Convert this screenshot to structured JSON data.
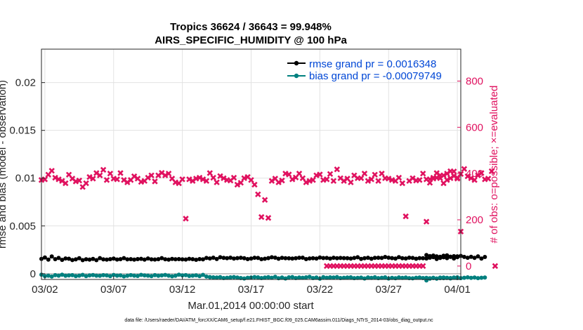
{
  "chart_data": {
    "type": "scatter",
    "title": "Tropics 36624 / 36643 = 99.948%",
    "subtitle": "AIRS_SPECIFIC_HUMIDITY @ 100 hPa",
    "xlabel": "Mar.01,2014 00:00:00 start",
    "ylabel_left": "rmse and bias (model - observation)",
    "ylabel_right": "# of obs: o=possible; ×=evaluated",
    "footer": "data file: /Users/raeder/DAI/ATM_forcXX/CAM6_setup/f.e21.FHIST_BGC.f09_025.CAM6assim.011/Diags_NTrS_2014-03/obs_diag_output.nc",
    "x_ticks": [
      "03/02",
      "03/07",
      "03/12",
      "03/17",
      "03/22",
      "03/27",
      "04/01"
    ],
    "x_tick_values": [
      1,
      6,
      11,
      16,
      21,
      26,
      31
    ],
    "xlim": [
      0.75,
      31.25
    ],
    "ylim_left": [
      -0.0006,
      0.0235
    ],
    "ylim_right": [
      -58,
      938
    ],
    "yticks_left": [
      "0",
      "0.005",
      "0.01",
      "0.015",
      "0.02"
    ],
    "ytick_values_left": [
      0,
      0.005,
      0.01,
      0.015,
      0.02
    ],
    "yticks_right": [
      "0",
      "200",
      "400",
      "600",
      "800"
    ],
    "ytick_values_right": [
      0,
      200,
      400,
      600,
      800
    ],
    "grid": true,
    "legend_position": "top-right",
    "colors": {
      "rmse": "#000000",
      "bias": "#00807f",
      "obs": "#e0115f",
      "label_right": "#e0115f",
      "legend_text": "#0047d6"
    },
    "series": [
      {
        "name": "rmse grand pr = 0.0016348",
        "axis": "left",
        "segments": [
          {
            "x_start": 0.75,
            "x_step": 0.25,
            "values": [
              0.00155,
              0.0017,
              0.00148,
              0.0018,
              0.00152,
              0.00165,
              0.00145,
              0.0016,
              0.00157,
              0.00143,
              0.0015,
              0.00162,
              0.00142,
              0.00151,
              0.00148,
              0.00155,
              0.00142,
              0.00163,
              0.0015,
              0.00147,
              0.00152,
              0.00158,
              0.00149,
              0.00152,
              0.00163,
              0.0015,
              0.00152,
              0.00147,
              0.00153,
              0.00156,
              0.00148,
              0.0016,
              0.0015,
              0.00149,
              0.00152,
              0.00163,
              0.00151,
              0.00147,
              0.00155,
              0.00151,
              0.00153,
              0.0015,
              0.00149,
              0.00156,
              0.00152,
              0.00146,
              0.00153,
              0.0015,
              0.00165,
              0.0016,
              0.00168,
              0.00154,
              0.00172,
              0.00166,
              0.00162,
              0.00168,
              0.00158,
              0.00163,
              0.00167,
              0.00162,
              0.00153,
              0.00158,
              0.00167,
              0.00165,
              0.00152,
              0.00157,
              0.00163,
              0.00172,
              0.00168,
              0.00157,
              0.00166,
              0.00162,
              0.00161,
              0.00158,
              0.00162,
              0.00167,
              0.00168,
              0.00153,
              0.0016,
              0.00162,
              0.00158,
              0.0017,
              0.00164,
              0.00165,
              0.00158,
              0.00167,
              0.00162,
              0.00165,
              0.00163,
              0.00162,
              0.00158,
              0.00165,
              0.00172,
              0.00155,
              0.00162,
              0.00167,
              0.00157,
              0.00166,
              0.00167,
              0.00165,
              0.00175,
              0.00168,
              0.00163,
              0.00158,
              0.00173,
              0.00162,
              0.0016,
              0.00168,
              0.00165,
              0.00157,
              0.00163,
              0.00162,
              0.0016,
              0.00168,
              0.00174,
              0.00154,
              0.00165,
              0.00172,
              0.00163,
              0.00178,
              0.0016,
              0.00182
            ]
          },
          {
            "x_start": 28.75,
            "x_step": 0.25,
            "values": [
              0.00195,
              0.00185,
              0.0019,
              0.00182,
              0.00177,
              0.00188,
              0.00192,
              0.00176,
              0.00183,
              0.00174,
              0.00186,
              0.00176,
              0.00167,
              0.00177,
              0.00166,
              0.00182,
              0.00158,
              0.00175
            ]
          }
        ]
      },
      {
        "name": "bias grand pr = -0.00079749",
        "axis": "left",
        "segments": [
          {
            "x_start": 0.75,
            "x_step": 0.25,
            "values": [
              -0.0001,
              -0.00025,
              -0.0002,
              -0.0003,
              -0.00015,
              -0.0002,
              -0.0001,
              -0.00022,
              -0.00018,
              -0.00015,
              -0.00025,
              -0.0002,
              -0.00012,
              -0.00025,
              -0.00018,
              -0.00014,
              -0.0002,
              -0.00022,
              -0.00015,
              -0.00018,
              -0.00025,
              -0.00013,
              -0.0002,
              -0.00018,
              -0.00028,
              -0.00022,
              -0.00015,
              -0.0002,
              -0.00023,
              -0.00012,
              -0.00018,
              -0.0002,
              -0.00025,
              -0.00015,
              -0.00022,
              -0.00018,
              -0.00013,
              -0.0002,
              -0.00027,
              -0.00022,
              -0.0001,
              -0.00018,
              -0.00015,
              -0.00023,
              -0.0002,
              -0.00017,
              -0.00025,
              -0.00012,
              -0.0003,
              -0.00035,
              -0.00038,
              -0.0004,
              -0.00036,
              -0.00045,
              -0.00042,
              -0.00038,
              -0.00035,
              -0.0004,
              -0.00045,
              -0.0005,
              -0.00042,
              -0.0004,
              -0.00035,
              -0.00038,
              -0.00045,
              -0.0004,
              -0.00036,
              -0.00042,
              -0.00033,
              -0.00047,
              -0.0004,
              -0.0005,
              -0.00038,
              -0.00035,
              -0.00045,
              -0.0004,
              -0.00042,
              -0.00038,
              -0.00033,
              -0.00045,
              -0.0004,
              -0.00052,
              -0.00036,
              -0.00042,
              -0.00038,
              -0.0004,
              -0.00035,
              -0.00045,
              -0.00042,
              -0.0004,
              -0.00038,
              -0.00046,
              -0.00043,
              -0.00041,
              -0.0005,
              -0.00039,
              -0.00044,
              -0.00037,
              -0.00046,
              -0.00042,
              -0.00038,
              -0.0005,
              -0.00043,
              -0.00047,
              -0.00039,
              -0.00044,
              -0.0004,
              -0.00046,
              -0.00048,
              -0.00042,
              -0.0004,
              -0.00045,
              -0.00043,
              -0.00047,
              -0.00042,
              -0.0005,
              -0.00041,
              -0.00046,
              -0.00044,
              -0.00049,
              -0.00042,
              -0.00045
            ]
          },
          {
            "x_start": 28.75,
            "x_step": 0.25,
            "values": [
              -0.0007,
              -0.00052,
              -0.00045,
              -0.00052,
              -0.00046,
              -0.0004,
              -0.00044,
              -0.00045,
              -0.0004,
              -0.00038,
              -0.00046,
              -0.00042,
              -0.00038,
              -0.00044,
              -0.0004,
              -0.00046,
              -0.00042,
              -0.0004
            ]
          }
        ]
      },
      {
        "name": "# of obs",
        "axis": "right",
        "segments": [
          {
            "x_start": 0.75,
            "x_step": 0.25,
            "values": [
              372,
              375,
              395,
              412,
              382,
              375,
              368,
              358,
              395,
              378,
              366,
              370,
              342,
              358,
              385,
              378,
              402,
              392,
              416,
              372,
              400,
              378,
              375,
              402,
              372,
              362,
              372,
              388,
              378,
              364,
              368,
              382,
              392,
              366,
              392,
              403,
              392,
              400,
              378,
              362,
              358,
              375,
              205,
              375,
              368,
              378,
              382,
              375,
              368,
              402,
              382,
              362,
              389,
              380,
              372,
              370,
              382,
              352,
              360,
              380,
              385,
              372,
              352,
              310,
              212,
              286,
              208,
              368,
              378,
              362,
              370,
              400,
              396,
              375,
              383,
              400,
              380,
              362,
              368,
              372,
              392,
              396,
              372,
              375,
              398,
              368,
              418,
              380,
              368,
              378,
              362,
              392,
              380,
              380,
              400,
              368,
              375,
              395,
              368,
              400,
              380,
              378,
              372,
              368,
              382,
              358,
              215,
              368,
              380,
              370,
              372,
              400,
              375,
              360,
              382,
              402,
              392,
              358,
              372,
              380,
              409,
              382,
              149
            ]
          },
          {
            "x_start": 21.5,
            "x_step": 0.25,
            "values": [
              0,
              0,
              0,
              0,
              0,
              0,
              0,
              0,
              0,
              0,
              0,
              0,
              0,
              0,
              0,
              0,
              0,
              0,
              0,
              0,
              0,
              0,
              0,
              0,
              0,
              0,
              0,
              0,
              0
            ]
          },
          {
            "x_start": 28.75,
            "x_step": 0.25,
            "values": [
              192,
              375,
              378,
              382,
              380,
              392,
              400,
              410,
              390,
              378,
              398,
              420,
              388,
              380,
              372,
              392,
              402,
              375,
              378,
              410,
              0
            ]
          }
        ]
      }
    ]
  }
}
